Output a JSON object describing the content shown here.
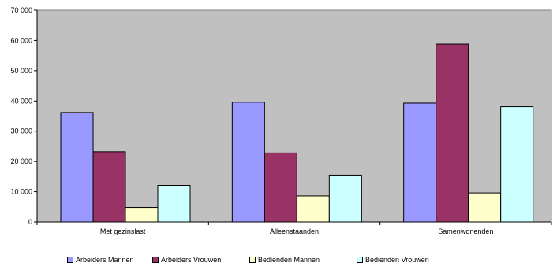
{
  "chart_data": {
    "type": "bar",
    "categories": [
      "Met gezinslast",
      "Alleenstaanden",
      "Samenwonenden"
    ],
    "series": [
      {
        "name": "Arbeiders Mannen",
        "values": [
          36200,
          39600,
          39300
        ],
        "color": "#9999ff"
      },
      {
        "name": "Arbeiders Vrouwen",
        "values": [
          23200,
          22800,
          58800
        ],
        "color": "#993366"
      },
      {
        "name": "Bedienden Mannen",
        "values": [
          4800,
          8600,
          9600
        ],
        "color": "#ffffcc"
      },
      {
        "name": "Bedienden Vrouwen",
        "values": [
          12100,
          15500,
          38100
        ],
        "color": "#ccffff"
      }
    ],
    "ylim": [
      0,
      70000
    ],
    "yticks": [
      "0",
      "10 000",
      "20 000",
      "30 000",
      "40 000",
      "50 000",
      "60 000",
      "70 000"
    ],
    "grid": false,
    "legend_position": "bottom",
    "plot_background": "#c0c0c0"
  }
}
